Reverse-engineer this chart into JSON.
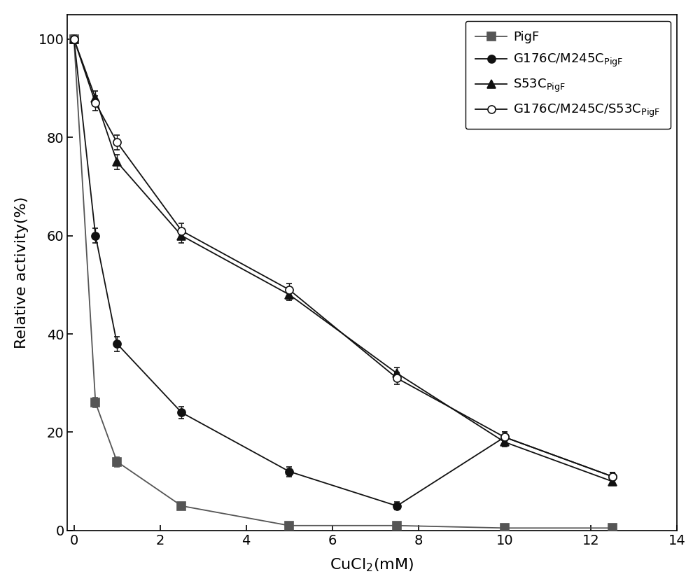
{
  "x_values": [
    0,
    0.5,
    1.0,
    2.5,
    5.0,
    7.5,
    10.0,
    12.5
  ],
  "series": {
    "PigF": {
      "y": [
        100,
        26,
        14,
        5,
        1,
        1,
        0.5,
        0.5
      ],
      "yerr": [
        0.8,
        1.0,
        1.0,
        0.6,
        0.4,
        0.4,
        0.3,
        0.3
      ],
      "color": "#555555",
      "marker": "s",
      "markersize": 8,
      "fillstyle": "full",
      "linewidth": 1.3,
      "label": "PigF"
    },
    "G176C_M245C": {
      "y": [
        100,
        60,
        38,
        24,
        12,
        5,
        19,
        11
      ],
      "yerr": [
        0.8,
        1.5,
        1.5,
        1.2,
        1.0,
        0.8,
        1.0,
        0.8
      ],
      "color": "#111111",
      "marker": "o",
      "markersize": 8,
      "fillstyle": "full",
      "linewidth": 1.3,
      "label": "G176C/M245C$_\\mathregular{PigF}$"
    },
    "S53C": {
      "y": [
        100,
        88,
        75,
        60,
        48,
        32,
        18,
        10
      ],
      "yerr": [
        0.8,
        1.5,
        1.5,
        1.5,
        1.2,
        1.2,
        1.0,
        0.8
      ],
      "color": "#111111",
      "marker": "^",
      "markersize": 8,
      "fillstyle": "full",
      "linewidth": 1.3,
      "label": "S53C$_\\mathregular{PigF}$"
    },
    "G176C_M245C_S53C": {
      "y": [
        100,
        87,
        79,
        61,
        49,
        31,
        19,
        11
      ],
      "yerr": [
        0.8,
        1.5,
        1.5,
        1.5,
        1.2,
        1.2,
        1.0,
        0.8
      ],
      "color": "#111111",
      "marker": "o",
      "markersize": 8,
      "fillstyle": "none",
      "linewidth": 1.3,
      "label": "G176C/M245C/S53C$_\\mathregular{PigF}$"
    }
  },
  "xlabel": "CuCl$_\\mathregular{2}$(mM)",
  "ylabel": "Relative activity(%)",
  "xlim": [
    -0.15,
    14
  ],
  "ylim": [
    0,
    105
  ],
  "xticks": [
    0,
    2,
    4,
    6,
    8,
    10,
    12,
    14
  ],
  "yticks": [
    0,
    20,
    40,
    60,
    80,
    100
  ],
  "figsize": [
    10.0,
    8.4
  ],
  "dpi": 100,
  "legend_loc": "upper right",
  "background_color": "#ffffff"
}
